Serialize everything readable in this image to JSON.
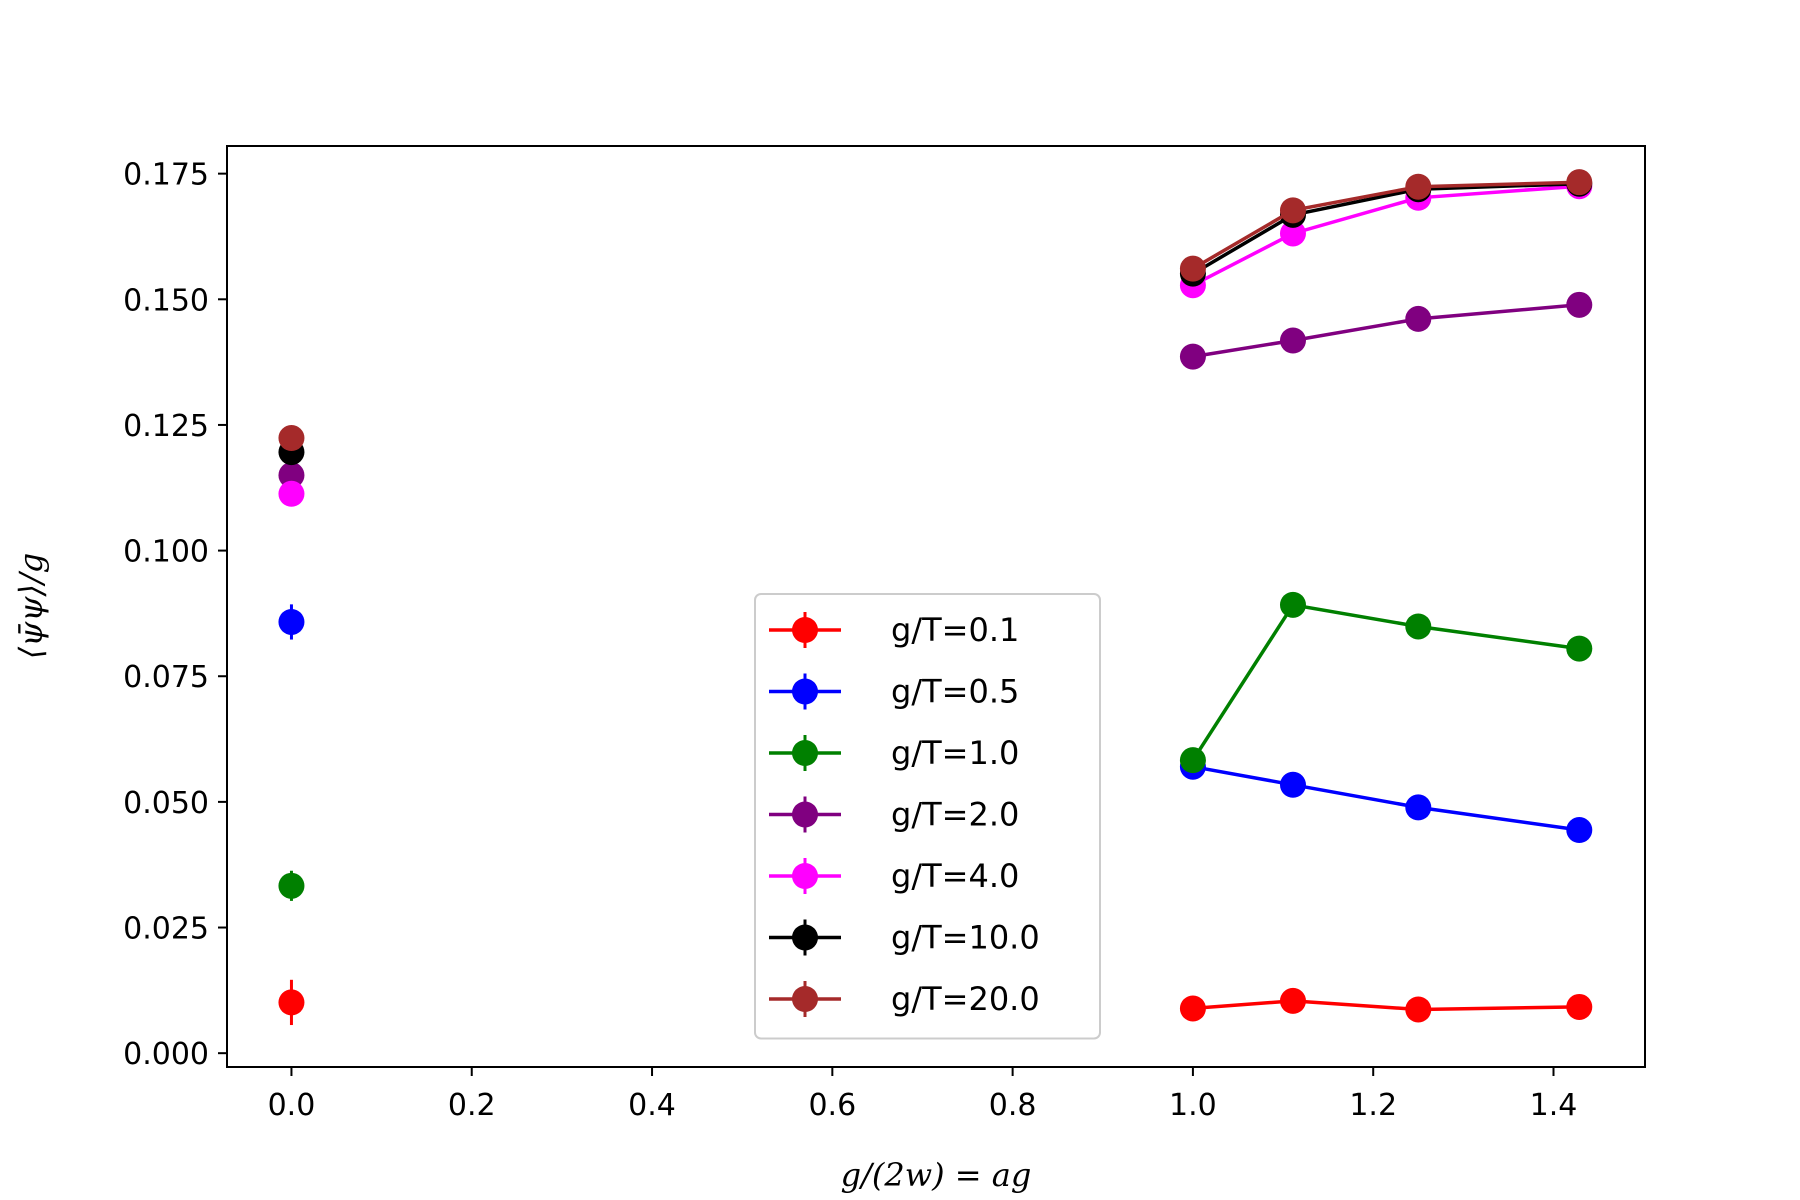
{
  "chart_data": {
    "type": "line",
    "xlabel": "g/(2w) = ag",
    "ylabel": "⟨ψ̄ψ⟩/g",
    "xlim": [
      -0.0715,
      1.5015
    ],
    "ylim": [
      -0.00275,
      0.1805
    ],
    "x_ticks": [
      "0.0",
      "0.2",
      "0.4",
      "0.6",
      "0.8",
      "1.0",
      "1.2",
      "1.4"
    ],
    "x_tick_values": [
      0.0,
      0.2,
      0.4,
      0.6,
      0.8,
      1.0,
      1.2,
      1.4
    ],
    "y_ticks": [
      "0.000",
      "0.025",
      "0.050",
      "0.075",
      "0.100",
      "0.125",
      "0.150",
      "0.175"
    ],
    "y_tick_values": [
      0.0,
      0.025,
      0.05,
      0.075,
      0.1,
      0.125,
      0.15,
      0.175
    ],
    "grid": false,
    "legend_position": "lower-center",
    "x": [
      1.0,
      1.111,
      1.25,
      1.4286
    ],
    "series": [
      {
        "name": "g/T=0.1",
        "color": "#ff0000",
        "x0_value": 0.0101,
        "x0_error": 0.0045,
        "values": [
          0.0089,
          0.0104,
          0.0087,
          0.0092
        ]
      },
      {
        "name": "g/T=0.5",
        "color": "#0000ff",
        "x0_value": 0.0858,
        "x0_error": 0.0035,
        "values": [
          0.057,
          0.0534,
          0.0489,
          0.0444
        ]
      },
      {
        "name": "g/T=1.0",
        "color": "#008000",
        "x0_value": 0.0333,
        "x0_error": 0.003,
        "values": [
          0.0583,
          0.0892,
          0.0849,
          0.0805
        ]
      },
      {
        "name": "g/T=2.0",
        "color": "#800080",
        "x0_value": 0.115,
        "x0_error": 0.0015,
        "values": [
          0.1386,
          0.1418,
          0.1461,
          0.1489
        ]
      },
      {
        "name": "g/T=4.0",
        "color": "#ff00ff",
        "x0_value": 0.1113,
        "x0_error": 0.0015,
        "values": [
          0.1528,
          0.1631,
          0.1702,
          0.1725
        ]
      },
      {
        "name": "g/T=10.0",
        "color": "#000000",
        "x0_value": 0.1196,
        "x0_error": 0.0015,
        "values": [
          0.1551,
          0.1668,
          0.1719,
          0.173
        ]
      },
      {
        "name": "g/T=20.0",
        "color": "#a52a2a",
        "x0_value": 0.1224,
        "x0_error": 0.0015,
        "values": [
          0.1561,
          0.1677,
          0.1724,
          0.1733
        ]
      }
    ]
  }
}
